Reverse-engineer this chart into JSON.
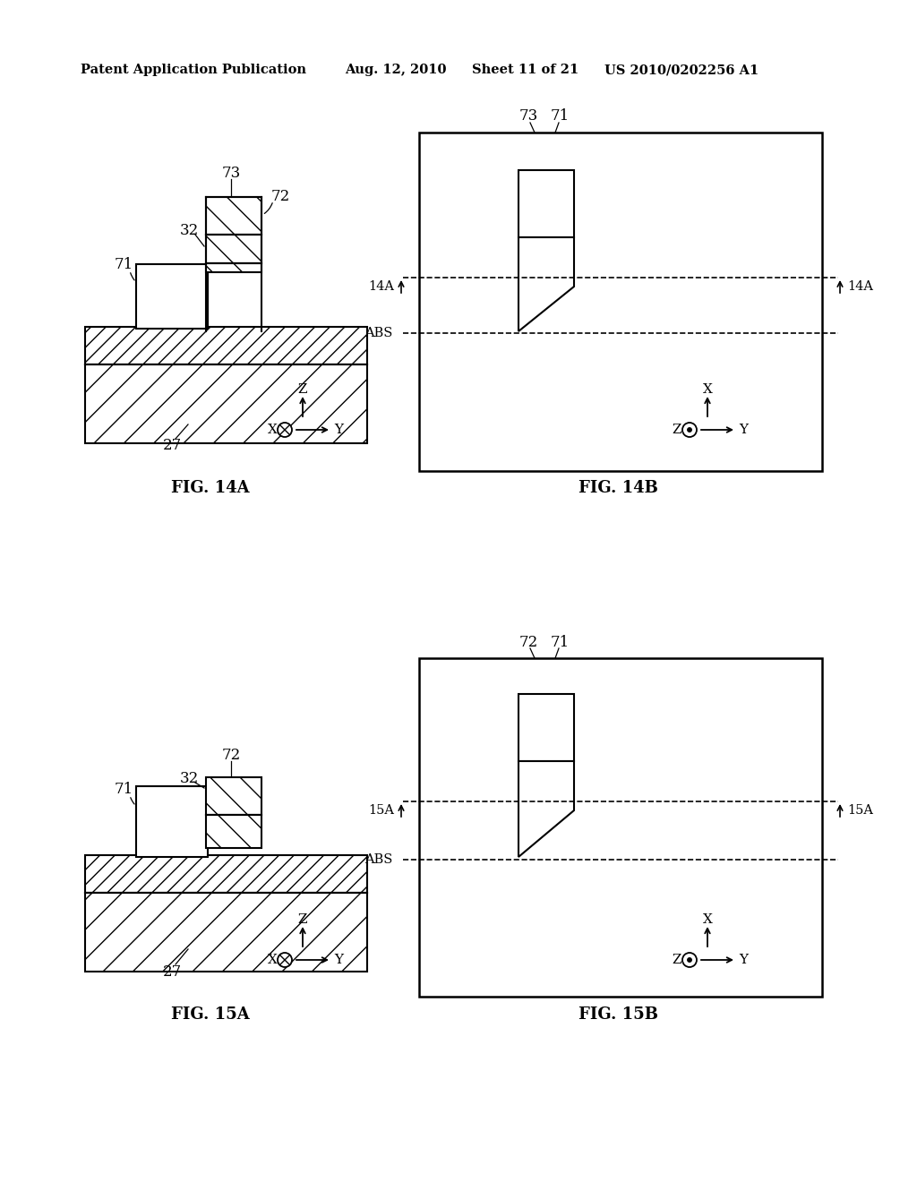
{
  "bg_color": "#ffffff",
  "header_text": "Patent Application Publication",
  "header_date": "Aug. 12, 2010",
  "header_sheet": "Sheet 11 of 21",
  "header_patent": "US 2010/0202256 A1",
  "fig14a_label": "FIG. 14A",
  "fig14b_label": "FIG. 14B",
  "fig15a_label": "FIG. 15A",
  "fig15b_label": "FIG. 15B"
}
